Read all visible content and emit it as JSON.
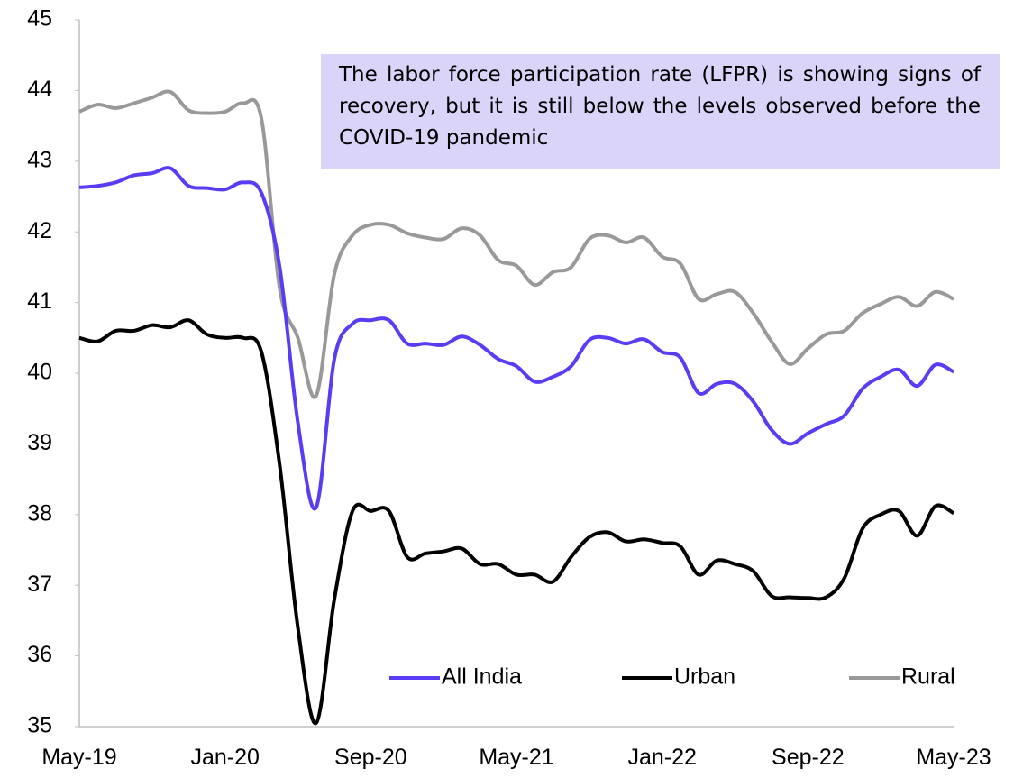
{
  "chart_data": {
    "type": "line",
    "annotation": "The labor force participation rate (LFPR) is showing signs of recovery, but it is still below the levels observed before the COVID-19 pandemic",
    "categories": [
      "May-19",
      null,
      null,
      null,
      null,
      null,
      null,
      null,
      "Jan-20",
      null,
      null,
      null,
      null,
      null,
      null,
      null,
      "Sep-20",
      null,
      null,
      null,
      null,
      null,
      null,
      null,
      "May-21",
      null,
      null,
      null,
      null,
      null,
      null,
      null,
      "Jan-22",
      null,
      null,
      null,
      null,
      null,
      null,
      null,
      "Sep-22",
      null,
      null,
      null,
      null,
      null,
      null,
      null,
      "May-23"
    ],
    "series": [
      {
        "name": "All India",
        "color": "#5b3cf5",
        "values": [
          42.63,
          42.65,
          42.7,
          42.8,
          42.83,
          42.9,
          42.65,
          42.62,
          42.6,
          42.7,
          42.55,
          41.5,
          39.3,
          38.1,
          40.2,
          40.7,
          40.75,
          40.75,
          40.42,
          40.42,
          40.4,
          40.52,
          40.4,
          40.2,
          40.1,
          39.88,
          39.95,
          40.1,
          40.47,
          40.5,
          40.42,
          40.48,
          40.3,
          40.22,
          39.72,
          39.85,
          39.85,
          39.6,
          39.2,
          39.0,
          39.15,
          39.28,
          39.4,
          39.78,
          39.95,
          40.05,
          39.82,
          40.12,
          40.02
        ]
      },
      {
        "name": "Urban",
        "color": "#000000",
        "values": [
          40.5,
          40.45,
          40.6,
          40.6,
          40.68,
          40.65,
          40.75,
          40.55,
          40.5,
          40.5,
          40.3,
          38.7,
          36.4,
          35.05,
          36.8,
          38.05,
          38.05,
          38.05,
          37.4,
          37.45,
          37.48,
          37.52,
          37.3,
          37.3,
          37.15,
          37.15,
          37.05,
          37.4,
          37.68,
          37.75,
          37.62,
          37.65,
          37.6,
          37.55,
          37.15,
          37.35,
          37.3,
          37.2,
          36.85,
          36.83,
          36.82,
          36.83,
          37.1,
          37.8,
          38.0,
          38.05,
          37.7,
          38.12,
          38.02
        ]
      },
      {
        "name": "Rural",
        "color": "#999999",
        "values": [
          43.7,
          43.8,
          43.75,
          43.82,
          43.9,
          43.98,
          43.72,
          43.68,
          43.7,
          43.82,
          43.6,
          41.2,
          40.5,
          39.68,
          41.4,
          41.95,
          42.1,
          42.1,
          41.98,
          41.92,
          41.9,
          42.05,
          41.95,
          41.6,
          41.52,
          41.25,
          41.43,
          41.5,
          41.9,
          41.95,
          41.85,
          41.92,
          41.65,
          41.55,
          41.05,
          41.12,
          41.15,
          40.85,
          40.45,
          40.13,
          40.35,
          40.55,
          40.6,
          40.85,
          40.98,
          41.08,
          40.95,
          41.15,
          41.05
        ]
      }
    ],
    "ylim": [
      35,
      45
    ],
    "yticks": [
      35,
      36,
      37,
      38,
      39,
      40,
      41,
      42,
      43,
      44,
      45
    ],
    "legend": "bottom-right"
  }
}
